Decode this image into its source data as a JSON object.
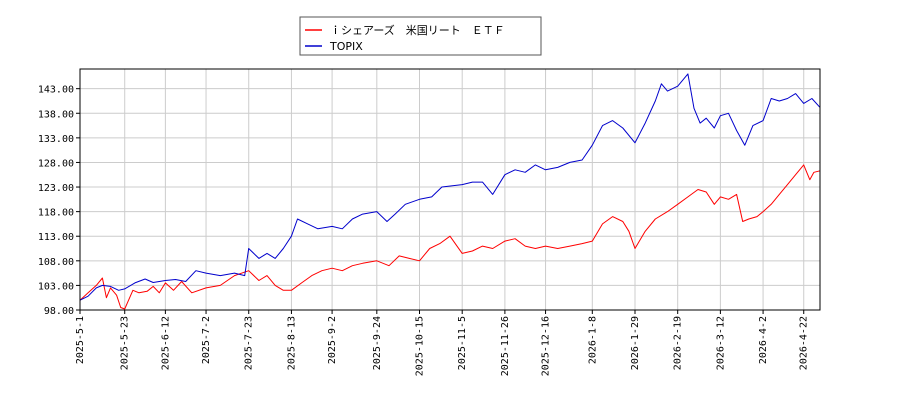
{
  "chart_data": {
    "type": "line",
    "title": "",
    "xlabel": "",
    "ylabel": "",
    "ylim": [
      98.0,
      147.0
    ],
    "y_ticks": [
      98.0,
      103.0,
      108.0,
      113.0,
      118.0,
      123.0,
      128.0,
      133.0,
      138.0,
      143.0
    ],
    "y_tick_labels": [
      "98.00",
      "103.00",
      "108.00",
      "113.00",
      "118.00",
      "123.00",
      "128.00",
      "133.00",
      "138.00",
      "143.00"
    ],
    "x_tick_labels": [
      "2025-5-1",
      "2025-5-23",
      "2025-6-12",
      "2025-7-2",
      "2025-7-23",
      "2025-8-13",
      "2025-9-2",
      "2025-9-24",
      "2025-10-15",
      "2025-11-5",
      "2025-11-26",
      "2025-12-16",
      "2026-1-8",
      "2026-1-29",
      "2026-2-19",
      "2026-3-12",
      "2026-4-2",
      "2026-4-22"
    ],
    "grid": true,
    "legend_position": "top-center",
    "series": [
      {
        "name": "ｉシェアーズ　米国リート　ＥＴＦ",
        "color": "#ff0000",
        "points": [
          [
            "2025-5-1",
            100.0
          ],
          [
            "2025-5-5",
            101.5
          ],
          [
            "2025-5-9",
            103.0
          ],
          [
            "2025-5-12",
            104.5
          ],
          [
            "2025-5-14",
            100.5
          ],
          [
            "2025-5-16",
            102.5
          ],
          [
            "2025-5-19",
            101.0
          ],
          [
            "2025-5-21",
            98.5
          ],
          [
            "2025-5-23",
            98.2
          ],
          [
            "2025-5-27",
            102.0
          ],
          [
            "2025-5-30",
            101.5
          ],
          [
            "2025-6-3",
            101.8
          ],
          [
            "2025-6-6",
            102.8
          ],
          [
            "2025-6-9",
            101.5
          ],
          [
            "2025-6-12",
            103.5
          ],
          [
            "2025-6-16",
            102.0
          ],
          [
            "2025-6-20",
            103.8
          ],
          [
            "2025-6-25",
            101.5
          ],
          [
            "2025-7-2",
            102.5
          ],
          [
            "2025-7-9",
            103.0
          ],
          [
            "2025-7-16",
            105.0
          ],
          [
            "2025-7-23",
            106.0
          ],
          [
            "2025-7-28",
            104.0
          ],
          [
            "2025-8-1",
            105.0
          ],
          [
            "2025-8-5",
            103.0
          ],
          [
            "2025-8-9",
            102.0
          ],
          [
            "2025-8-13",
            102.0
          ],
          [
            "2025-8-18",
            103.5
          ],
          [
            "2025-8-23",
            105.0
          ],
          [
            "2025-8-28",
            106.0
          ],
          [
            "2025-9-2",
            106.5
          ],
          [
            "2025-9-7",
            106.0
          ],
          [
            "2025-9-12",
            107.0
          ],
          [
            "2025-9-17",
            107.5
          ],
          [
            "2025-9-24",
            108.0
          ],
          [
            "2025-9-30",
            107.0
          ],
          [
            "2025-10-5",
            109.0
          ],
          [
            "2025-10-10",
            108.5
          ],
          [
            "2025-10-15",
            108.0
          ],
          [
            "2025-10-20",
            110.5
          ],
          [
            "2025-10-25",
            111.5
          ],
          [
            "2025-10-30",
            113.0
          ],
          [
            "2025-11-5",
            109.5
          ],
          [
            "2025-11-10",
            110.0
          ],
          [
            "2025-11-15",
            111.0
          ],
          [
            "2025-11-20",
            110.5
          ],
          [
            "2025-11-26",
            112.0
          ],
          [
            "2025-12-1",
            112.5
          ],
          [
            "2025-12-6",
            111.0
          ],
          [
            "2025-12-11",
            110.5
          ],
          [
            "2025-12-16",
            111.0
          ],
          [
            "2025-12-22",
            110.5
          ],
          [
            "2025-12-28",
            111.0
          ],
          [
            "2026-1-3",
            111.5
          ],
          [
            "2026-1-8",
            112.0
          ],
          [
            "2026-1-13",
            115.5
          ],
          [
            "2026-1-18",
            117.0
          ],
          [
            "2026-1-23",
            116.0
          ],
          [
            "2026-1-26",
            114.0
          ],
          [
            "2026-1-29",
            110.5
          ],
          [
            "2026-2-3",
            114.0
          ],
          [
            "2026-2-8",
            116.5
          ],
          [
            "2026-2-14",
            118.0
          ],
          [
            "2026-2-19",
            119.5
          ],
          [
            "2026-2-24",
            121.0
          ],
          [
            "2026-3-1",
            122.5
          ],
          [
            "2026-3-5",
            122.0
          ],
          [
            "2026-3-9",
            119.5
          ],
          [
            "2026-3-12",
            121.0
          ],
          [
            "2026-3-16",
            120.5
          ],
          [
            "2026-3-20",
            121.5
          ],
          [
            "2026-3-23",
            116.0
          ],
          [
            "2026-3-26",
            116.5
          ],
          [
            "2026-3-30",
            117.0
          ],
          [
            "2026-4-2",
            118.0
          ],
          [
            "2026-4-6",
            119.5
          ],
          [
            "2026-4-10",
            121.5
          ],
          [
            "2026-4-14",
            123.5
          ],
          [
            "2026-4-18",
            125.5
          ],
          [
            "2026-4-22",
            127.5
          ],
          [
            "2026-4-25",
            124.5
          ],
          [
            "2026-4-27",
            126.0
          ],
          [
            "2026-4-30",
            126.3
          ]
        ]
      },
      {
        "name": "TOPIX",
        "color": "#0000cc",
        "points": [
          [
            "2025-5-1",
            100.0
          ],
          [
            "2025-5-5",
            100.8
          ],
          [
            "2025-5-9",
            102.5
          ],
          [
            "2025-5-12",
            103.0
          ],
          [
            "2025-5-16",
            102.8
          ],
          [
            "2025-5-20",
            102.0
          ],
          [
            "2025-5-23",
            102.3
          ],
          [
            "2025-5-28",
            103.5
          ],
          [
            "2025-6-2",
            104.3
          ],
          [
            "2025-6-6",
            103.6
          ],
          [
            "2025-6-12",
            104.0
          ],
          [
            "2025-6-17",
            104.2
          ],
          [
            "2025-6-22",
            103.8
          ],
          [
            "2025-6-27",
            106.0
          ],
          [
            "2025-7-2",
            105.5
          ],
          [
            "2025-7-9",
            105.0
          ],
          [
            "2025-7-16",
            105.5
          ],
          [
            "2025-7-21",
            105.0
          ],
          [
            "2025-7-23",
            110.5
          ],
          [
            "2025-7-28",
            108.5
          ],
          [
            "2025-8-1",
            109.5
          ],
          [
            "2025-8-5",
            108.5
          ],
          [
            "2025-8-9",
            110.5
          ],
          [
            "2025-8-13",
            113.0
          ],
          [
            "2025-8-16",
            116.5
          ],
          [
            "2025-8-21",
            115.5
          ],
          [
            "2025-8-26",
            114.5
          ],
          [
            "2025-9-2",
            115.0
          ],
          [
            "2025-9-7",
            114.5
          ],
          [
            "2025-9-12",
            116.5
          ],
          [
            "2025-9-17",
            117.5
          ],
          [
            "2025-9-24",
            118.0
          ],
          [
            "2025-9-29",
            116.0
          ],
          [
            "2025-10-3",
            117.5
          ],
          [
            "2025-10-8",
            119.5
          ],
          [
            "2025-10-15",
            120.5
          ],
          [
            "2025-10-21",
            121.0
          ],
          [
            "2025-10-26",
            123.0
          ],
          [
            "2025-11-5",
            123.5
          ],
          [
            "2025-11-10",
            124.0
          ],
          [
            "2025-11-15",
            124.0
          ],
          [
            "2025-11-20",
            121.5
          ],
          [
            "2025-11-26",
            125.5
          ],
          [
            "2025-12-1",
            126.5
          ],
          [
            "2025-12-6",
            126.0
          ],
          [
            "2025-12-11",
            127.5
          ],
          [
            "2025-12-16",
            126.5
          ],
          [
            "2025-12-22",
            127.0
          ],
          [
            "2025-12-28",
            128.0
          ],
          [
            "2026-1-3",
            128.5
          ],
          [
            "2026-1-8",
            131.5
          ],
          [
            "2026-1-13",
            135.5
          ],
          [
            "2026-1-18",
            136.5
          ],
          [
            "2026-1-23",
            135.0
          ],
          [
            "2026-1-29",
            132.0
          ],
          [
            "2026-2-3",
            136.0
          ],
          [
            "2026-2-8",
            140.5
          ],
          [
            "2026-2-11",
            144.0
          ],
          [
            "2026-2-14",
            142.5
          ],
          [
            "2026-2-19",
            143.5
          ],
          [
            "2026-2-24",
            146.0
          ],
          [
            "2026-2-27",
            139.0
          ],
          [
            "2026-3-2",
            136.0
          ],
          [
            "2026-3-5",
            137.0
          ],
          [
            "2026-3-9",
            135.0
          ],
          [
            "2026-3-12",
            137.5
          ],
          [
            "2026-3-16",
            138.0
          ],
          [
            "2026-3-20",
            134.5
          ],
          [
            "2026-3-24",
            131.5
          ],
          [
            "2026-3-28",
            135.5
          ],
          [
            "2026-4-2",
            136.5
          ],
          [
            "2026-4-6",
            141.0
          ],
          [
            "2026-4-10",
            140.5
          ],
          [
            "2026-4-14",
            141.0
          ],
          [
            "2026-4-18",
            142.0
          ],
          [
            "2026-4-22",
            140.0
          ],
          [
            "2026-4-26",
            141.0
          ],
          [
            "2026-4-30",
            139.2
          ]
        ]
      }
    ]
  }
}
